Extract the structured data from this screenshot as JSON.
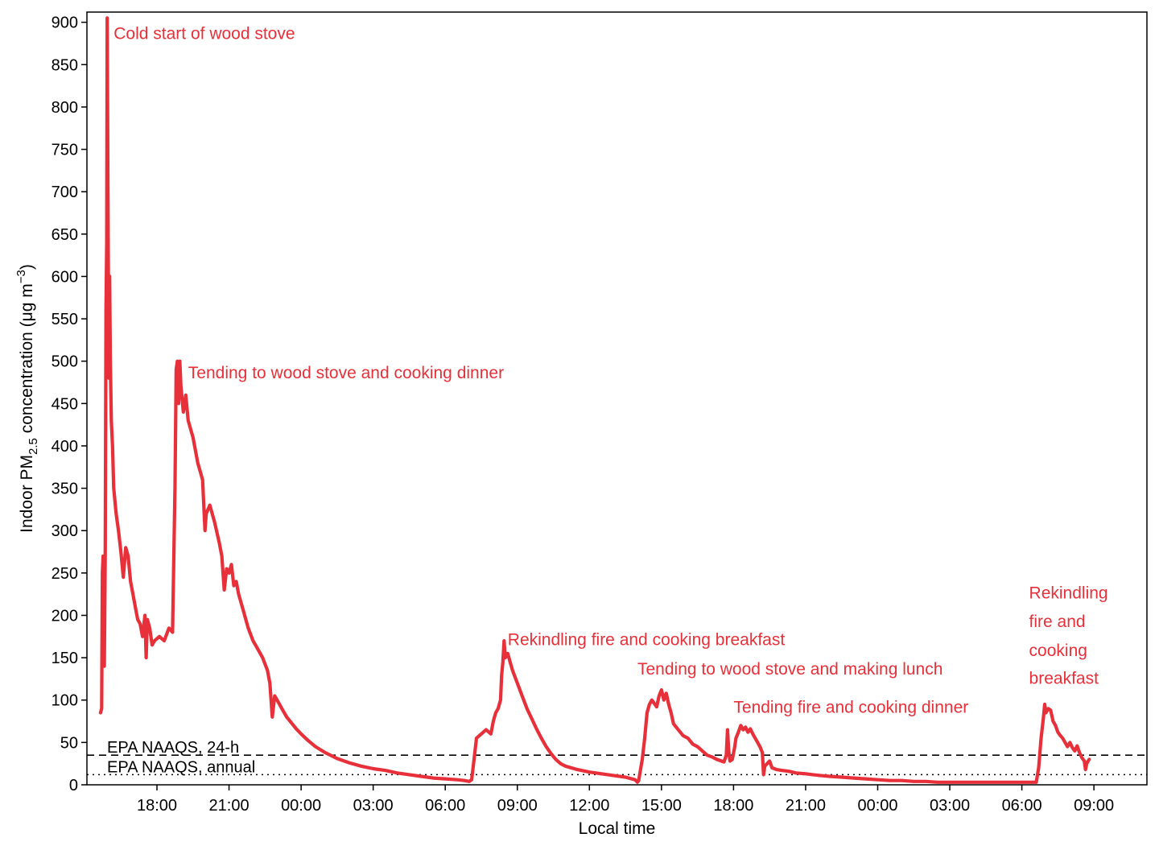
{
  "chart_data": {
    "type": "line",
    "xlabel": "Local time",
    "ylabel_parts": {
      "pre": "Indoor PM",
      "sub": "2.5",
      "mid": " concentration (",
      "mu": "μ",
      "unit": "g m",
      "sup": "−3",
      "post": ")"
    },
    "ylim": [
      0,
      910
    ],
    "yticks": [
      0,
      50,
      100,
      150,
      200,
      250,
      300,
      350,
      400,
      450,
      500,
      550,
      600,
      650,
      700,
      750,
      800,
      850,
      900
    ],
    "xlim_hours": [
      -2.85,
      34.7
    ],
    "xticks": [
      {
        "h": 0,
        "label": "18:00"
      },
      {
        "h": 3,
        "label": "21:00"
      },
      {
        "h": 6,
        "label": "00:00"
      },
      {
        "h": 9,
        "label": "03:00"
      },
      {
        "h": 12,
        "label": "06:00"
      },
      {
        "h": 15,
        "label": "09:00"
      },
      {
        "h": 18,
        "label": "12:00"
      },
      {
        "h": 21,
        "label": "15:00"
      },
      {
        "h": 24,
        "label": "18:00"
      },
      {
        "h": 27,
        "label": "21:00"
      },
      {
        "h": 30,
        "label": "00:00"
      },
      {
        "h": 33,
        "label": "03:00"
      },
      {
        "h": 36,
        "label": "06:00"
      },
      {
        "h": 39,
        "label": "09:00"
      }
    ],
    "x_note": "x in hours relative to first day 18:00 local time",
    "series": [
      {
        "color": "#E8303A",
        "points": [
          [
            -2.35,
            85
          ],
          [
            -2.3,
            90
          ],
          [
            -2.27,
            250
          ],
          [
            -2.24,
            270
          ],
          [
            -2.22,
            150
          ],
          [
            -2.19,
            140
          ],
          [
            -2.15,
            280
          ],
          [
            -2.12,
            560
          ],
          [
            -2.09,
            640
          ],
          [
            -2.07,
            905
          ],
          [
            -2.04,
            700
          ],
          [
            -2.0,
            480
          ],
          [
            -1.97,
            600
          ],
          [
            -1.94,
            500
          ],
          [
            -1.9,
            430
          ],
          [
            -1.85,
            400
          ],
          [
            -1.8,
            350
          ],
          [
            -1.7,
            320
          ],
          [
            -1.6,
            300
          ],
          [
            -1.5,
            275
          ],
          [
            -1.4,
            245
          ],
          [
            -1.3,
            280
          ],
          [
            -1.2,
            270
          ],
          [
            -1.1,
            240
          ],
          [
            -1.0,
            225
          ],
          [
            -0.9,
            210
          ],
          [
            -0.8,
            195
          ],
          [
            -0.7,
            190
          ],
          [
            -0.6,
            175
          ],
          [
            -0.5,
            200
          ],
          [
            -0.45,
            150
          ],
          [
            -0.4,
            195
          ],
          [
            -0.3,
            185
          ],
          [
            -0.2,
            165
          ],
          [
            -0.1,
            170
          ],
          [
            0.1,
            175
          ],
          [
            0.3,
            170
          ],
          [
            0.5,
            185
          ],
          [
            0.65,
            180
          ],
          [
            0.75,
            350
          ],
          [
            0.8,
            490
          ],
          [
            0.85,
            500
          ],
          [
            0.9,
            450
          ],
          [
            0.95,
            500
          ],
          [
            1.0,
            470
          ],
          [
            1.1,
            440
          ],
          [
            1.2,
            460
          ],
          [
            1.3,
            430
          ],
          [
            1.5,
            410
          ],
          [
            1.7,
            380
          ],
          [
            1.9,
            360
          ],
          [
            2.0,
            300
          ],
          [
            2.05,
            320
          ],
          [
            2.2,
            330
          ],
          [
            2.4,
            310
          ],
          [
            2.6,
            285
          ],
          [
            2.7,
            270
          ],
          [
            2.8,
            230
          ],
          [
            2.9,
            255
          ],
          [
            3.0,
            250
          ],
          [
            3.1,
            260
          ],
          [
            3.2,
            235
          ],
          [
            3.3,
            240
          ],
          [
            3.4,
            225
          ],
          [
            3.6,
            205
          ],
          [
            3.8,
            185
          ],
          [
            4.0,
            170
          ],
          [
            4.2,
            160
          ],
          [
            4.4,
            150
          ],
          [
            4.6,
            135
          ],
          [
            4.7,
            120
          ],
          [
            4.8,
            80
          ],
          [
            4.9,
            105
          ],
          [
            5.0,
            100
          ],
          [
            5.2,
            90
          ],
          [
            5.4,
            80
          ],
          [
            5.6,
            73
          ],
          [
            5.8,
            66
          ],
          [
            6.0,
            60
          ],
          [
            6.3,
            52
          ],
          [
            6.6,
            45
          ],
          [
            7.0,
            38
          ],
          [
            7.5,
            31
          ],
          [
            8.0,
            26
          ],
          [
            8.5,
            22
          ],
          [
            9.0,
            19
          ],
          [
            9.5,
            17
          ],
          [
            10.0,
            14
          ],
          [
            10.5,
            12
          ],
          [
            11.0,
            10
          ],
          [
            11.5,
            8
          ],
          [
            12.0,
            7
          ],
          [
            12.5,
            6
          ],
          [
            12.8,
            5
          ],
          [
            13.0,
            4
          ],
          [
            13.1,
            6
          ],
          [
            13.2,
            30
          ],
          [
            13.3,
            55
          ],
          [
            13.5,
            60
          ],
          [
            13.7,
            65
          ],
          [
            13.9,
            60
          ],
          [
            14.0,
            75
          ],
          [
            14.1,
            85
          ],
          [
            14.2,
            90
          ],
          [
            14.3,
            100
          ],
          [
            14.35,
            130
          ],
          [
            14.4,
            145
          ],
          [
            14.45,
            170
          ],
          [
            14.5,
            150
          ],
          [
            14.6,
            155
          ],
          [
            14.7,
            145
          ],
          [
            14.8,
            135
          ],
          [
            15.0,
            120
          ],
          [
            15.2,
            105
          ],
          [
            15.4,
            90
          ],
          [
            15.6,
            78
          ],
          [
            15.8,
            66
          ],
          [
            16.0,
            55
          ],
          [
            16.2,
            45
          ],
          [
            16.4,
            37
          ],
          [
            16.6,
            30
          ],
          [
            16.8,
            25
          ],
          [
            17.0,
            22
          ],
          [
            17.5,
            18
          ],
          [
            18.0,
            15
          ],
          [
            18.5,
            13
          ],
          [
            19.0,
            11
          ],
          [
            19.5,
            9
          ],
          [
            19.9,
            6
          ],
          [
            20.0,
            3
          ],
          [
            20.05,
            5
          ],
          [
            20.2,
            30
          ],
          [
            20.3,
            55
          ],
          [
            20.4,
            85
          ],
          [
            20.5,
            95
          ],
          [
            20.6,
            100
          ],
          [
            20.8,
            92
          ],
          [
            20.9,
            105
          ],
          [
            21.0,
            112
          ],
          [
            21.1,
            100
          ],
          [
            21.2,
            108
          ],
          [
            21.3,
            95
          ],
          [
            21.4,
            85
          ],
          [
            21.5,
            72
          ],
          [
            21.7,
            65
          ],
          [
            21.9,
            58
          ],
          [
            22.1,
            55
          ],
          [
            22.3,
            48
          ],
          [
            22.5,
            45
          ],
          [
            22.7,
            40
          ],
          [
            22.9,
            35
          ],
          [
            23.1,
            33
          ],
          [
            23.3,
            30
          ],
          [
            23.5,
            28
          ],
          [
            23.6,
            27
          ],
          [
            23.7,
            35
          ],
          [
            23.75,
            65
          ],
          [
            23.8,
            40
          ],
          [
            23.85,
            28
          ],
          [
            23.95,
            30
          ],
          [
            24.05,
            45
          ],
          [
            24.1,
            55
          ],
          [
            24.2,
            62
          ],
          [
            24.3,
            70
          ],
          [
            24.4,
            65
          ],
          [
            24.5,
            68
          ],
          [
            24.6,
            62
          ],
          [
            24.7,
            66
          ],
          [
            24.8,
            60
          ],
          [
            24.9,
            55
          ],
          [
            25.0,
            50
          ],
          [
            25.1,
            45
          ],
          [
            25.2,
            38
          ],
          [
            25.25,
            12
          ],
          [
            25.3,
            22
          ],
          [
            25.5,
            28
          ],
          [
            25.6,
            20
          ],
          [
            25.8,
            18
          ],
          [
            26.0,
            17
          ],
          [
            26.3,
            16
          ],
          [
            26.6,
            14
          ],
          [
            27.0,
            13
          ],
          [
            27.3,
            12
          ],
          [
            27.6,
            11
          ],
          [
            28.0,
            10
          ],
          [
            28.5,
            9
          ],
          [
            29.0,
            8
          ],
          [
            29.5,
            7
          ],
          [
            30.0,
            6
          ],
          [
            30.5,
            5
          ],
          [
            31.0,
            5
          ],
          [
            31.5,
            4
          ],
          [
            32.0,
            4
          ],
          [
            32.5,
            3
          ],
          [
            33.0,
            3
          ],
          [
            34.0,
            3
          ],
          [
            35.0,
            3
          ],
          [
            36.0,
            3
          ],
          [
            36.4,
            3
          ],
          [
            36.6,
            3
          ],
          [
            36.7,
            20
          ],
          [
            36.8,
            55
          ],
          [
            36.9,
            80
          ],
          [
            36.95,
            95
          ],
          [
            37.0,
            85
          ],
          [
            37.1,
            90
          ],
          [
            37.2,
            88
          ],
          [
            37.3,
            75
          ],
          [
            37.4,
            70
          ],
          [
            37.5,
            62
          ],
          [
            37.6,
            58
          ],
          [
            37.7,
            55
          ],
          [
            37.8,
            50
          ],
          [
            37.9,
            45
          ],
          [
            38.0,
            50
          ],
          [
            38.1,
            44
          ],
          [
            38.2,
            40
          ],
          [
            38.3,
            46
          ],
          [
            38.4,
            38
          ],
          [
            38.5,
            32
          ],
          [
            38.6,
            28
          ],
          [
            38.65,
            18
          ],
          [
            38.7,
            25
          ],
          [
            38.8,
            30
          ]
        ]
      }
    ],
    "reference_lines": [
      {
        "label": "EPA NAAQS, 24-h",
        "value": 35,
        "style": "dashed"
      },
      {
        "label": "EPA NAAQS, annual",
        "value": 12,
        "style": "dotted"
      }
    ],
    "annotations": [
      {
        "text": "Cold start of wood stove",
        "x": -1.8,
        "y": 880
      },
      {
        "text": "Tending to wood stove and cooking dinner",
        "x": 1.3,
        "y": 480
      },
      {
        "text": "Rekindling fire and cooking breakfast",
        "x": 14.6,
        "y": 165
      },
      {
        "text": "Tending to wood stove and making lunch",
        "x": 20.0,
        "y": 130
      },
      {
        "text": "Tending fire and cooking dinner",
        "x": 24.0,
        "y": 85
      },
      {
        "text": "Rekindling",
        "x": 36.3,
        "y": 220
      },
      {
        "text": "fire and",
        "x": 36.3,
        "y": 186
      },
      {
        "text": "cooking",
        "x": 36.3,
        "y": 152
      },
      {
        "text": "breakfast",
        "x": 36.3,
        "y": 119
      }
    ],
    "line_color": "#E8303A",
    "grid": false,
    "legend": "none"
  }
}
